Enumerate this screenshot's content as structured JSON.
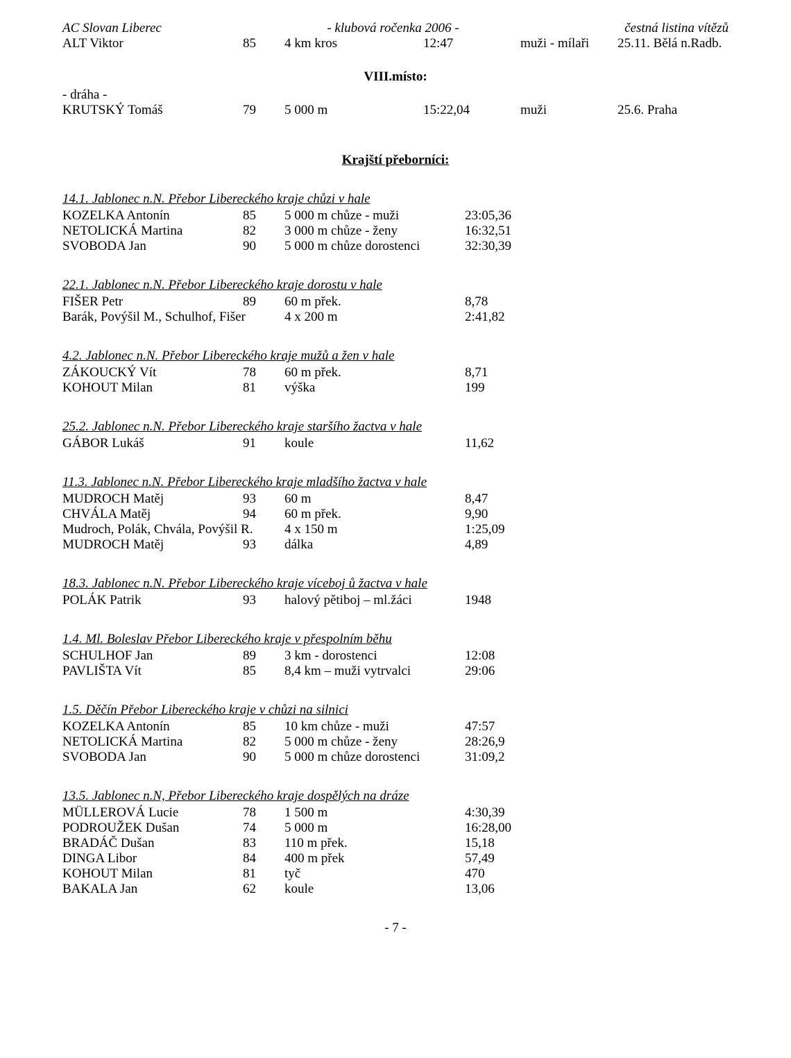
{
  "header": {
    "left": "AC Slovan Liberec",
    "center": "- klubová ročenka 2006 -",
    "right": "čestná listina vítězů"
  },
  "top_row": {
    "name": "ALT Viktor",
    "age": "85",
    "event": "4 km kros",
    "result": "12:47",
    "cat": "muži - mílaři",
    "extra": "25.11.  Bělá n.Radb."
  },
  "place8": {
    "title": "VIII.místo:",
    "note": "- dráha -",
    "rows": [
      {
        "name": "KRUTSKÝ Tomáš",
        "age": "79",
        "event": "5 000 m",
        "result": "15:22,04",
        "cat": "muži",
        "extra": "25.6.  Praha"
      }
    ]
  },
  "regional_title": "Krajští přeborníci:",
  "sections": [
    {
      "hdr_pre": "14.1.    Jablonec n.N.",
      "hdr_title": "Přebor Libereckého kraje chůzi v hale",
      "rows": [
        {
          "name": "KOZELKA Antonín",
          "age": "85",
          "event": "5 000 m chůze - muži",
          "extra": "23:05,36"
        },
        {
          "name": "NETOLICKÁ Martina",
          "age": "82",
          "event": "3 000 m chůze - ženy",
          "extra": "16:32,51"
        },
        {
          "name": "SVOBODA Jan",
          "age": "90",
          "event": "5 000 m chůze dorostenci",
          "extra": "32:30,39"
        }
      ]
    },
    {
      "hdr_pre": "22.1.    Jablonec n.N.",
      "hdr_title": "Přebor Libereckého kraje  dorostu v hale",
      "rows": [
        {
          "name": "FIŠER Petr",
          "age": "89",
          "event": "60 m přek.",
          "extra": "8,78"
        },
        {
          "name": "Barák, Povýšil M., Schulhof, Fišer",
          "age": "",
          "event": "4 x 200 m",
          "extra": "2:41,82"
        }
      ]
    },
    {
      "hdr_pre": "4.2.    Jablonec n.N.",
      "hdr_title": "Přebor Libereckého kraje  mužů a žen v hale",
      "rows": [
        {
          "name": "ZÁKOUCKÝ Vít",
          "age": "78",
          "event": "60 m přek.",
          "extra": "8,71"
        },
        {
          "name": "KOHOUT Milan",
          "age": "81",
          "event": "výška",
          "extra": "199"
        }
      ]
    },
    {
      "hdr_pre": "25.2.    Jablonec n.N.",
      "hdr_title": "Přebor Libereckého kraje staršího žactva v hale",
      "rows": [
        {
          "name": "GÁBOR Lukáš",
          "age": "91",
          "event": "koule",
          "extra": "11,62"
        }
      ]
    },
    {
      "hdr_pre": "11.3.    Jablonec n.N.",
      "hdr_title": "Přebor Libereckého kraje mladšího žactva v hale",
      "rows": [
        {
          "name": "MUDROCH Matěj",
          "age": "93",
          "event": "60 m",
          "extra": "8,47"
        },
        {
          "name": "CHVÁLA Matěj",
          "age": "94",
          "event": "60 m přek.",
          "extra": "9,90"
        },
        {
          "name": "Mudroch, Polák, Chvála, Povýšil R.",
          "age": "",
          "event": "4 x 150 m",
          "extra": "1:25,09"
        },
        {
          "name": "MUDROCH Matěj",
          "age": "93",
          "event": "dálka",
          "extra": "4,89"
        }
      ]
    },
    {
      "hdr_pre": "18.3.    Jablonec n.N.",
      "hdr_title": "Přebor Libereckého kraje  víceboj ů   žactva v hale",
      "rows": [
        {
          "name": "POLÁK Patrik",
          "age": "93",
          "event": "halový pětiboj – ml.žáci",
          "extra": "1948"
        }
      ]
    },
    {
      "hdr_pre": "1.4.    Ml. Boleslav",
      "hdr_title": "Přebor Libereckého kraje v přespolním běhu",
      "rows": [
        {
          "name": "SCHULHOF Jan",
          "age": "89",
          "event": "3 km - dorostenci",
          "extra": "12:08"
        },
        {
          "name": "PAVLIŠTA Vít",
          "age": "85",
          "event": "8,4 km – muži vytrvalci",
          "extra": "29:06"
        }
      ]
    },
    {
      "hdr_pre": "1.5.    Děčín",
      "hdr_title": "Přebor Libereckého kraje v chůzi na silnici",
      "rows": [
        {
          "name": "KOZELKA Antonín",
          "age": "85",
          "event": "10 km chůze - muži",
          "extra": "47:57"
        },
        {
          "name": "NETOLICKÁ Martina",
          "age": "82",
          "event": "5 000 m chůze - ženy",
          "extra": "28:26,9"
        },
        {
          "name": "SVOBODA Jan",
          "age": "90",
          "event": "5 000 m chůze dorostenci",
          "extra": "31:09,2"
        }
      ]
    },
    {
      "hdr_pre": "13.5.    Jablonec n.N,",
      "hdr_title": "Přebor Libereckého kraje dospělých na dráze",
      "rows": [
        {
          "name": "MÜLLEROVÁ Lucie",
          "age": "78",
          "event": "1 500 m",
          "extra": "4:30,39"
        },
        {
          "name": "PODROUŽEK Dušan",
          "age": "74",
          "event": "5 000 m",
          "extra": "16:28,00"
        },
        {
          "name": "BRADÁČ Dušan",
          "age": "83",
          "event": "110 m přek.",
          "extra": "15,18"
        },
        {
          "name": "DINGA Libor",
          "age": "84",
          "event": "400 m přek",
          "extra": "57,49"
        },
        {
          "name": "KOHOUT Milan",
          "age": "81",
          "event": "tyč",
          "extra": "470"
        },
        {
          "name": "BAKALA Jan",
          "age": "62",
          "event": "koule",
          "extra": "13,06"
        }
      ]
    }
  ],
  "pagefoot": "- 7 -"
}
